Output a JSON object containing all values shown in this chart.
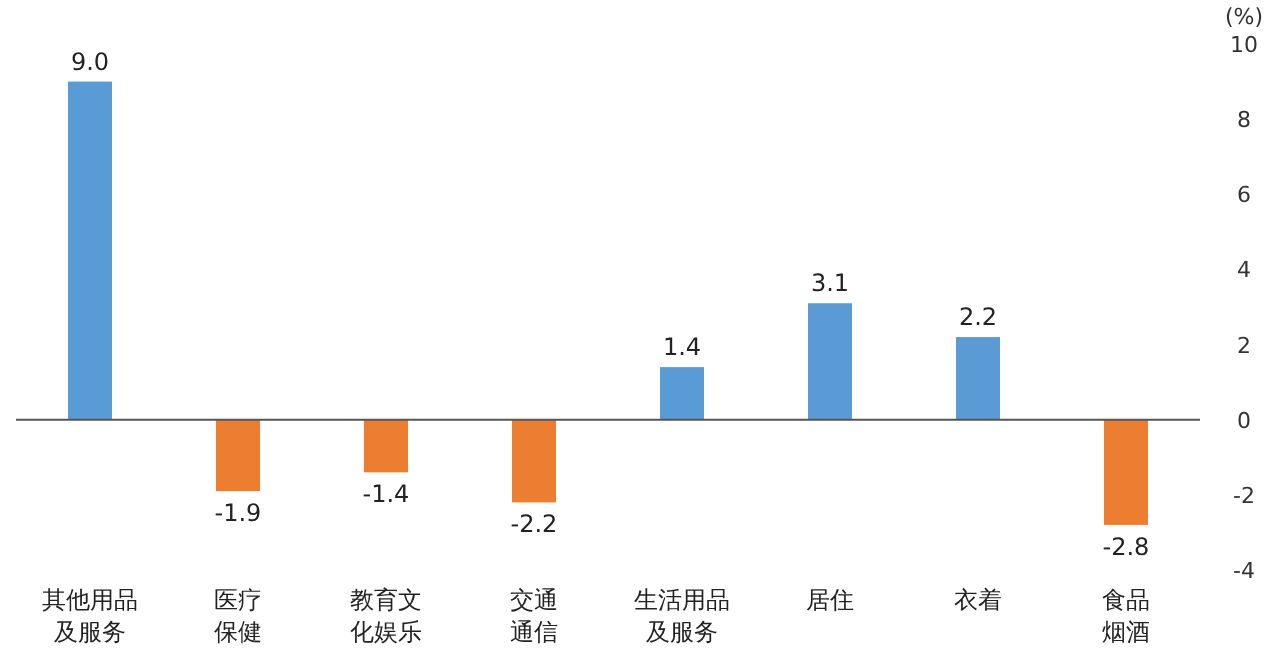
{
  "chart_data": {
    "type": "bar",
    "ylabel": "(%)",
    "categories": [
      "其他用品及服务",
      "医疗保健",
      "教育文化娱乐",
      "交通通信",
      "生活用品及服务",
      "居住",
      "衣着",
      "食品烟酒"
    ],
    "values": [
      9.0,
      -1.9,
      -1.4,
      -2.2,
      1.4,
      3.1,
      2.2,
      -2.8
    ],
    "colors": [
      "#5b9bd5",
      "#ed7d31",
      "#ed7d31",
      "#ed7d31",
      "#5b9bd5",
      "#5b9bd5",
      "#5b9bd5",
      "#ed7d31"
    ],
    "value_labels": [
      "9.0",
      "-1.9",
      "-1.4",
      "-2.2",
      "1.4",
      "3.1",
      "2.2",
      "-2.8"
    ],
    "ylim": [
      -4,
      10
    ],
    "yticks": [
      -4,
      -2,
      0,
      2,
      4,
      6,
      8,
      10
    ]
  }
}
